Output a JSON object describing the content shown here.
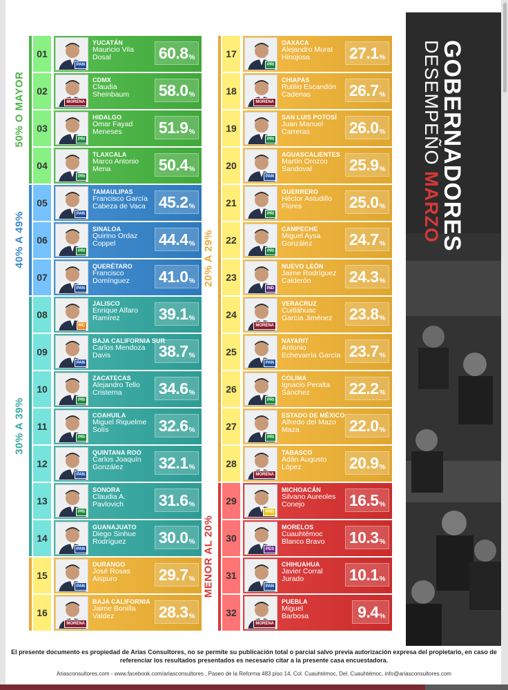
{
  "chart_data": {
    "type": "bar",
    "title_part1": "GOBERNADORES",
    "title_part2": "DESEMPEÑO",
    "title_part3": "MARZO",
    "unit": "%",
    "groups": [
      {
        "label": "50% O MAYOR",
        "color": "#4fb24a",
        "ranks": [
          1,
          4
        ]
      },
      {
        "label": "40% A 49%",
        "color": "#3a86c8",
        "ranks": [
          5,
          7
        ]
      },
      {
        "label": "30% A 39%",
        "color": "#3aa8a0",
        "ranks": [
          8,
          14
        ]
      },
      {
        "label": "20% A 29%",
        "color": "#e9a93a",
        "ranks": [
          15,
          28
        ]
      },
      {
        "label": "MENOR AL 20%",
        "color": "#d63838",
        "ranks": [
          29,
          32
        ]
      }
    ],
    "entries": [
      {
        "rank": "01",
        "state": "YUCATÁN",
        "name": "Mauricio Vila\nDosal",
        "value": 60.8,
        "value_label": "60.8",
        "party": "PAN",
        "color": "#4db447"
      },
      {
        "rank": "02",
        "state": "CDMX",
        "name": "Claudia\nSheinbaum",
        "value": 58.0,
        "value_label": "58.0",
        "party": "MORENA",
        "color": "#4db447"
      },
      {
        "rank": "03",
        "state": "HIDALGO",
        "name": "Omar Fayad\nMeneses",
        "value": 51.9,
        "value_label": "51.9",
        "party": "PRI",
        "color": "#4db447"
      },
      {
        "rank": "04",
        "state": "TLAXCALA",
        "name": "Marco Antonio\nMena",
        "value": 50.4,
        "value_label": "50.4",
        "party": "PRI",
        "color": "#4db447"
      },
      {
        "rank": "05",
        "state": "TAMAULIPAS",
        "name": "Francisco García\nCabeza de Vaca",
        "value": 45.2,
        "value_label": "45.2",
        "party": "PAN",
        "color": "#3a86c8"
      },
      {
        "rank": "06",
        "state": "SINALOA",
        "name": "Quirino Ordaz\nCoppel",
        "value": 44.4,
        "value_label": "44.4",
        "party": "PRI",
        "color": "#3a86c8"
      },
      {
        "rank": "07",
        "state": "QUERÉTARO",
        "name": "Francisco\nDomínguez",
        "value": 41.0,
        "value_label": "41.0",
        "party": "PAN",
        "color": "#3a86c8"
      },
      {
        "rank": "08",
        "state": "JALISCO",
        "name": "Enrique Alfaro\nRamírez",
        "value": 39.1,
        "value_label": "39.1",
        "party": "MC",
        "color": "#3aa8a0"
      },
      {
        "rank": "09",
        "state": "BAJA CALIFORNIA SUR",
        "name": "Carlos Mendoza\nDavis",
        "value": 38.7,
        "value_label": "38.7",
        "party": "PAN",
        "color": "#3aa8a0"
      },
      {
        "rank": "10",
        "state": "ZACATECAS",
        "name": "Alejandro Tello\nCristerna",
        "value": 34.6,
        "value_label": "34.6",
        "party": "PRI",
        "color": "#3aa8a0"
      },
      {
        "rank": "11",
        "state": "COAHUILA",
        "name": "Miguel Riquelme\nSolís",
        "value": 32.6,
        "value_label": "32.6",
        "party": "PRI",
        "color": "#3aa8a0"
      },
      {
        "rank": "12",
        "state": "QUINTANA ROO",
        "name": "Carlos Joaquín\nGonzález",
        "value": 32.1,
        "value_label": "32.1",
        "party": "PAN",
        "color": "#3aa8a0"
      },
      {
        "rank": "13",
        "state": "SONORA",
        "name": "Claudia A.\nPavlovich",
        "value": 31.6,
        "value_label": "31.6",
        "party": "PRI",
        "color": "#3aa8a0"
      },
      {
        "rank": "14",
        "state": "GUANAJUATO",
        "name": "Diego Sinhue\nRodríguez",
        "value": 30.0,
        "value_label": "30.0",
        "party": "PAN",
        "color": "#3aa8a0"
      },
      {
        "rank": "15",
        "state": "DURANGO",
        "name": "José Rosas\nAispuro",
        "value": 29.7,
        "value_label": "29.7",
        "party": "PAN",
        "color": "#ebb23c"
      },
      {
        "rank": "16",
        "state": "BAJA CALIFORNIA",
        "name": "Jaime Bonilla\nValdez",
        "value": 28.3,
        "value_label": "28.3",
        "party": "MORENA",
        "color": "#ebb23c"
      },
      {
        "rank": "17",
        "state": "OAXACA",
        "name": "Alejandro Murat\nHinojosa",
        "value": 27.1,
        "value_label": "27.1",
        "party": "PRI",
        "color": "#ebb23c"
      },
      {
        "rank": "18",
        "state": "CHIAPAS",
        "name": "Rutilio Escandón\nCadenas",
        "value": 26.7,
        "value_label": "26.7",
        "party": "MORENA",
        "color": "#ebb23c"
      },
      {
        "rank": "19",
        "state": "SAN LUIS POTOSÍ",
        "name": "Juan Manuel\nCarreras",
        "value": 26.0,
        "value_label": "26.0",
        "party": "PRI",
        "color": "#ebb23c"
      },
      {
        "rank": "20",
        "state": "AGUASCALIENTES",
        "name": "Martín Orozco\nSandoval",
        "value": 25.9,
        "value_label": "25.9",
        "party": "PAN",
        "color": "#ebb23c"
      },
      {
        "rank": "21",
        "state": "GUERRERO",
        "name": "Héctor Astudillo\nFlores",
        "value": 25.0,
        "value_label": "25.0",
        "party": "PRI",
        "color": "#ebb23c"
      },
      {
        "rank": "22",
        "state": "CAMPECHE",
        "name": "Miguel Aysa\nGonzález",
        "value": 24.7,
        "value_label": "24.7",
        "party": "PRI",
        "color": "#ebb23c"
      },
      {
        "rank": "23",
        "state": "NUEVO LEÓN",
        "name": "Jaime Rodríguez\nCalderón",
        "value": 24.3,
        "value_label": "24.3",
        "party": "IND",
        "color": "#ebb23c"
      },
      {
        "rank": "24",
        "state": "VERACRUZ",
        "name": "Cuitláhuac\nGarcía Jiménez",
        "value": 23.8,
        "value_label": "23.8",
        "party": "MORENA",
        "color": "#ebb23c"
      },
      {
        "rank": "25",
        "state": "NAYARIT",
        "name": "Antonio\nEchevarría García",
        "value": 23.7,
        "value_label": "23.7",
        "party": "PAN",
        "color": "#ebb23c"
      },
      {
        "rank": "26",
        "state": "COLIMA",
        "name": "Ignacio Peralta\nSánchez",
        "value": 22.2,
        "value_label": "22.2",
        "party": "PRI",
        "color": "#ebb23c"
      },
      {
        "rank": "27",
        "state": "ESTADO DE MÉXICO",
        "name": "Alfredo del Mazo\nMaza",
        "value": 22.0,
        "value_label": "22.0",
        "party": "PRI",
        "color": "#ebb23c"
      },
      {
        "rank": "28",
        "state": "TABASCO",
        "name": "Adán Augusto\nLópez",
        "value": 20.9,
        "value_label": "20.9",
        "party": "MORENA",
        "color": "#ebb23c"
      },
      {
        "rank": "29",
        "state": "MICHOACÁN",
        "name": "Silvano Aureoles\nConejo",
        "value": 16.5,
        "value_label": "16.5",
        "party": "PRD",
        "color": "#d63838"
      },
      {
        "rank": "30",
        "state": "MORELOS",
        "name": "Cuauhtémoc\nBlanco Bravo",
        "value": 10.3,
        "value_label": "10.3",
        "party": "PES",
        "color": "#d63838"
      },
      {
        "rank": "31",
        "state": "CHIHUAHUA",
        "name": "Javier Corral\nJurado",
        "value": 10.1,
        "value_label": "10.1",
        "party": "PAN",
        "color": "#d63838"
      },
      {
        "rank": "32",
        "state": "PUEBLA",
        "name": "Miguel\nBarbosa",
        "value": 9.4,
        "value_label": "9.4",
        "party": "MORENA",
        "color": "#d63838"
      }
    ]
  },
  "colors": {
    "PAN": "#1f4d9c",
    "PRI": "#1a8a3a",
    "MORENA": "#8b1c2b",
    "MC": "#f08a1c",
    "IND": "#5a2a7a",
    "PRD": "#e8c81c",
    "PES": "#6a2a8a"
  },
  "footer": {
    "disclaimer": "El presente documento es propiedad de Arias Consultores, no se permite su publicación total o parcial salvo previa autorización expresa del propietario, en caso de referenciar los resultados presentados es necesario citar a la presente casa encuestadora.",
    "contact": "Ariasconsultores.com -  www.facebook.com/ariasconsultores , Paseo de la Reforma 483 piso 14, Col. Cuauhtémoc, Del. Cuauhtémoc, info@ariasconsultores.com"
  }
}
